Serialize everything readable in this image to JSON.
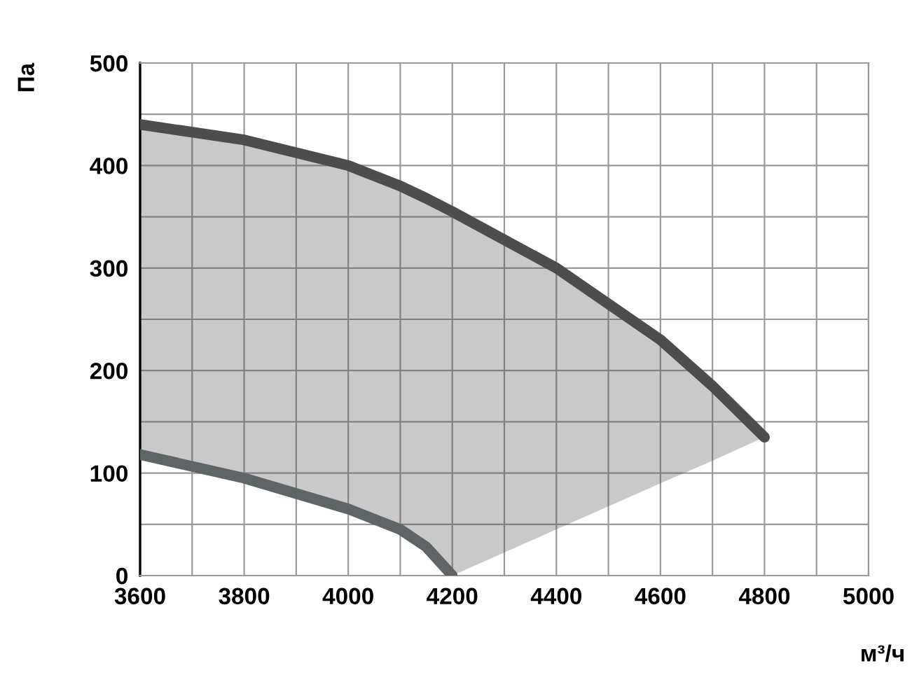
{
  "chart_data": {
    "type": "line",
    "xlabel": "м³/ч",
    "ylabel": "Па",
    "xlim": [
      3600,
      5000
    ],
    "ylim": [
      0,
      500
    ],
    "xticks": [
      3600,
      {
        "value": 3700,
        "label": null
      },
      3800,
      {
        "value": 3900,
        "label": null
      },
      4000,
      {
        "value": 4100,
        "label": null
      },
      4200,
      {
        "value": 4300,
        "label": null
      },
      4400,
      {
        "value": 4500,
        "label": null
      },
      4600,
      {
        "value": 4700,
        "label": null
      },
      4800,
      {
        "value": 4900,
        "label": null
      },
      5000
    ],
    "yticks": [
      0,
      {
        "value": 50,
        "label": null
      },
      100,
      {
        "value": 150,
        "label": null
      },
      200,
      {
        "value": 250,
        "label": null
      },
      300,
      {
        "value": 350,
        "label": null
      },
      400,
      {
        "value": 450,
        "label": null
      },
      500
    ],
    "grid": true,
    "legend": false,
    "marker": "none",
    "line_style": "solid",
    "series": [
      {
        "color": "#4d4d4d",
        "x": [
          3600,
          3800,
          4000,
          4100,
          4150,
          4200,
          4400,
          4600,
          4700,
          4800
        ],
        "values": [
          440,
          425,
          400,
          380,
          368,
          355,
          300,
          230,
          185,
          135
        ],
        "lower": [
          118,
          95,
          65,
          45,
          28,
          0,
          45,
          90,
          112,
          135
        ],
        "upper": [
          440,
          425,
          400,
          380,
          368,
          355,
          300,
          230,
          185,
          135
        ]
      },
      {
        "color": "#5f6466",
        "x": [
          3600,
          3800,
          4000,
          4100,
          4150,
          4200
        ],
        "values": [
          118,
          95,
          65,
          45,
          28,
          0
        ]
      }
    ]
  }
}
